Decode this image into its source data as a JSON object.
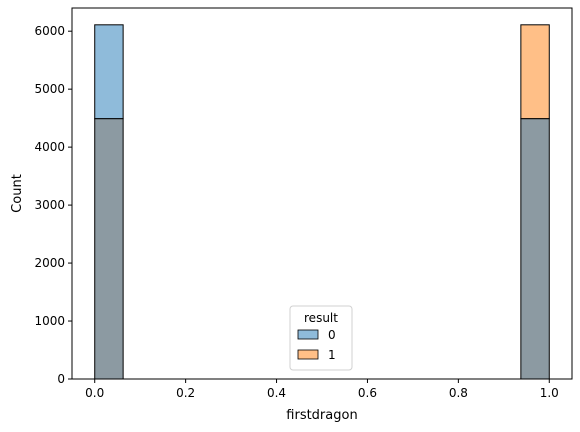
{
  "chart_data": {
    "type": "histogram",
    "title": "",
    "xlabel": "firstdragon",
    "ylabel": "Count",
    "xlim": [
      -0.05,
      1.05
    ],
    "ylim": [
      0,
      6400
    ],
    "x_ticks": [
      "0.0",
      "0.2",
      "0.4",
      "0.6",
      "0.8",
      "1.0"
    ],
    "y_ticks": [
      "0",
      "1000",
      "2000",
      "3000",
      "4000",
      "5000",
      "6000"
    ],
    "grid": false,
    "bin_width": 0.0625,
    "bin_edges": [
      0,
      0.0625,
      0.9375,
      1.0
    ],
    "series": [
      {
        "name": "0",
        "color": "#1f77b4",
        "bins": [
          [
            0,
            0.0625,
            6110
          ],
          [
            0.9375,
            1.0,
            4490
          ]
        ]
      },
      {
        "name": "1",
        "color": "#ff7f0e",
        "bins": [
          [
            0,
            0.0625,
            4490
          ],
          [
            0.9375,
            1.0,
            6110
          ]
        ]
      }
    ],
    "overlap_color": "#8c9aa2",
    "legend": {
      "title": "result",
      "position": "lower-center"
    }
  }
}
